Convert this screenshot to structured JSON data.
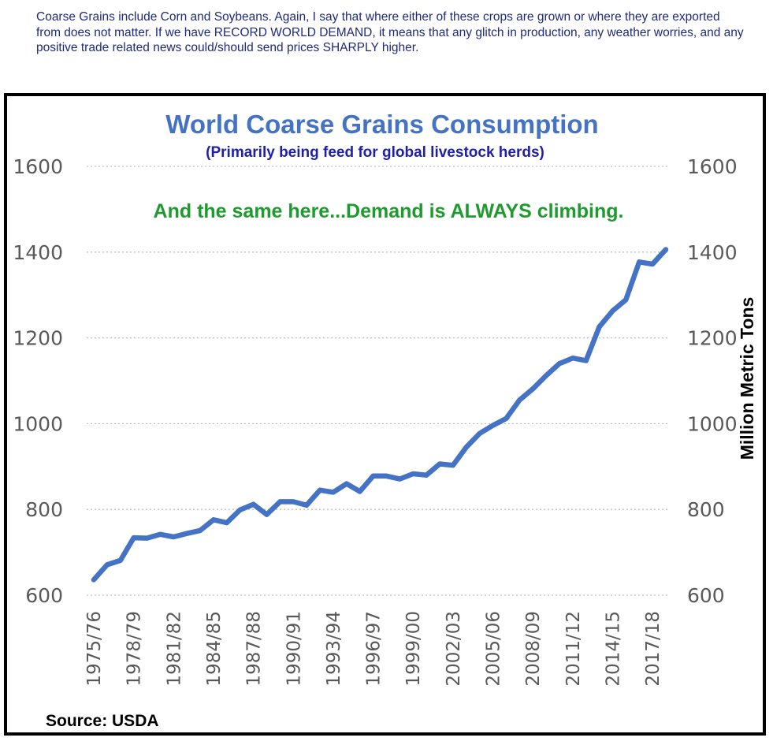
{
  "caption": "Coarse Grains include Corn and Soybeans. Again, I say that where either of these crops are grown or where they are exported from does not matter. If we have RECORD WORLD DEMAND, it means that any glitch in production, any weather worries, and any positive trade related news could/should send prices SHARPLY higher.",
  "source": "Source: USDA",
  "colors": {
    "line": "#4472c4",
    "title": "#4472c4",
    "subtitle": "#1f1fa8",
    "annotation": "#1e9b2e",
    "grid": "#bfbfbf",
    "tick_text": "#595959"
  },
  "chart_data": {
    "type": "line",
    "title": "World Coarse Grains Consumption",
    "subtitle": "(Primarily being feed for global livestock herds)",
    "annotation": "And the same here...Demand is ALWAYS climbing.",
    "ylabel": "Million Metric Tons",
    "xlabel": "",
    "ylim": [
      600,
      1600
    ],
    "yticks": [
      600,
      800,
      1000,
      1200,
      1400,
      1600
    ],
    "grid": true,
    "secondary_axis": "right",
    "xtick_labels": [
      "1975/76",
      "1978/79",
      "1981/82",
      "1984/85",
      "1987/88",
      "1990/91",
      "1993/94",
      "1996/97",
      "1999/00",
      "2002/03",
      "2005/06",
      "2008/09",
      "2011/12",
      "2014/15",
      "2017/18"
    ],
    "categories": [
      "1975/76",
      "1976/77",
      "1977/78",
      "1978/79",
      "1979/80",
      "1980/81",
      "1981/82",
      "1982/83",
      "1983/84",
      "1984/85",
      "1985/86",
      "1986/87",
      "1987/88",
      "1988/89",
      "1989/90",
      "1990/91",
      "1991/92",
      "1992/93",
      "1993/94",
      "1994/95",
      "1995/96",
      "1996/97",
      "1997/98",
      "1998/99",
      "1999/00",
      "2000/01",
      "2001/02",
      "2002/03",
      "2003/04",
      "2004/05",
      "2005/06",
      "2006/07",
      "2007/08",
      "2008/09",
      "2009/10",
      "2010/11",
      "2011/12",
      "2012/13",
      "2013/14",
      "2014/15",
      "2015/16",
      "2016/17",
      "2017/18",
      "2018/19"
    ],
    "series": [
      {
        "values": [
          636,
          671,
          681,
          734,
          733,
          742,
          736,
          744,
          751,
          776,
          769,
          799,
          812,
          788,
          818,
          818,
          810,
          845,
          840,
          860,
          842,
          878,
          878,
          871,
          883,
          880,
          906,
          903,
          945,
          977,
          996,
          1012,
          1055,
          1081,
          1112,
          1140,
          1153,
          1147,
          1226,
          1263,
          1289,
          1377,
          1372,
          1406
        ]
      }
    ]
  }
}
